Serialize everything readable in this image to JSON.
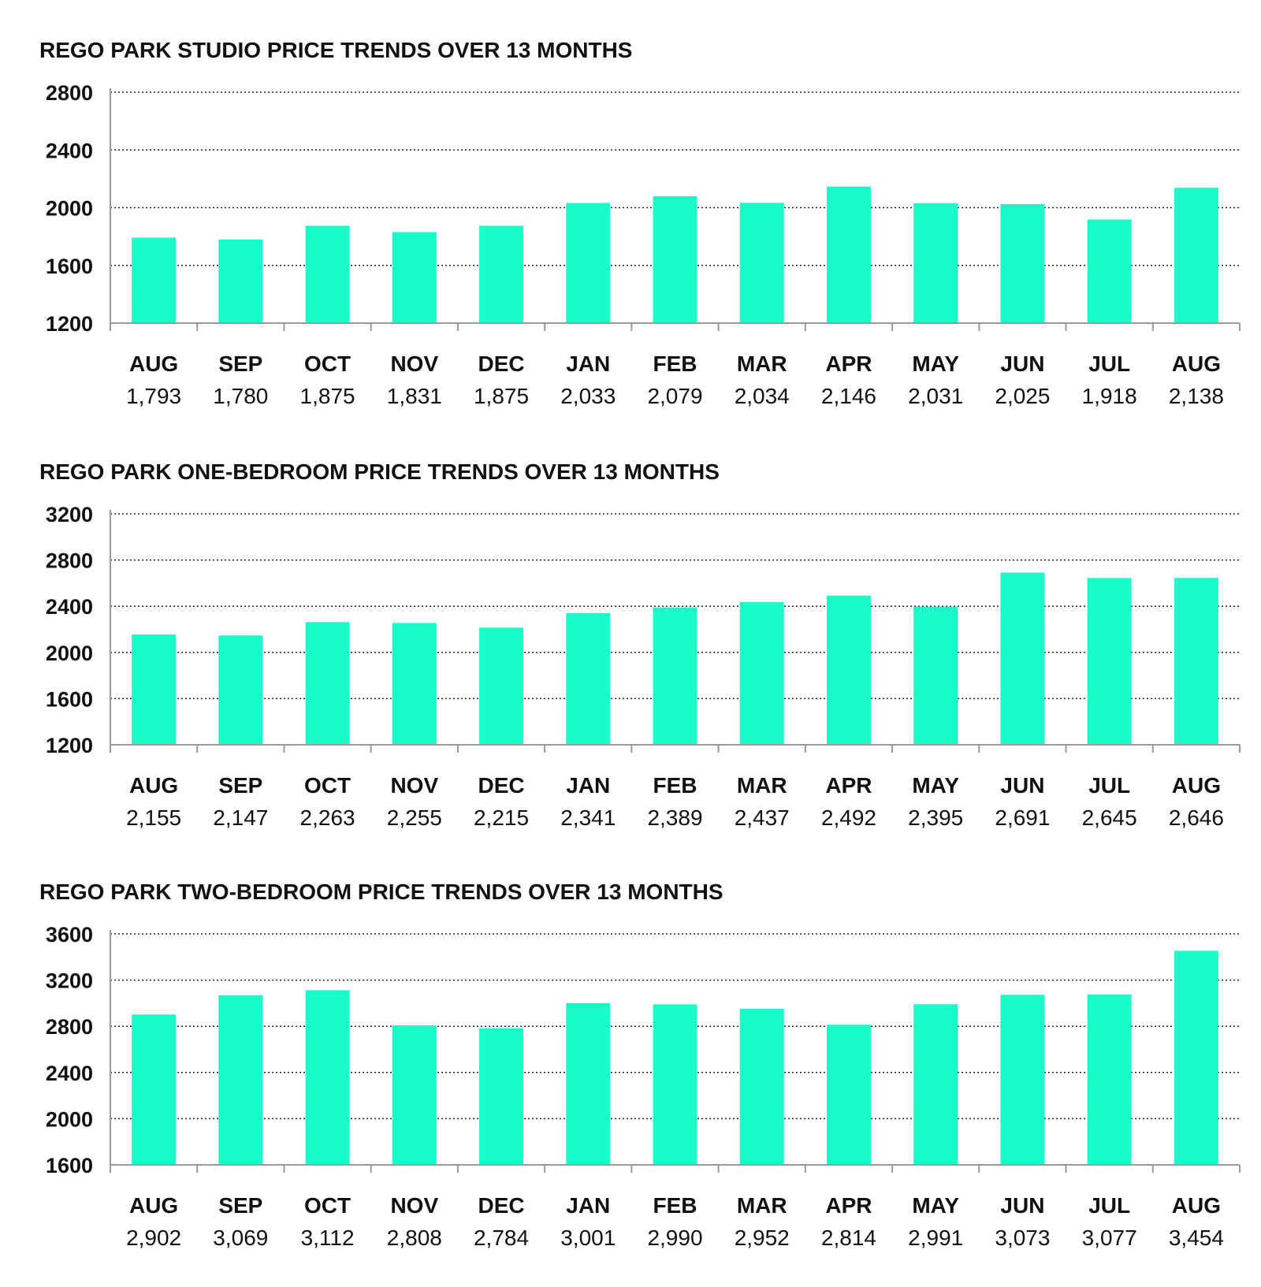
{
  "chart_data": [
    {
      "type": "bar",
      "title": "REGO PARK STUDIO PRICE TRENDS OVER 13 MONTHS",
      "categories": [
        "AUG",
        "SEP",
        "OCT",
        "NOV",
        "DEC",
        "JAN",
        "FEB",
        "MAR",
        "APR",
        "MAY",
        "JUN",
        "JUL",
        "AUG"
      ],
      "values": [
        1793,
        1780,
        1875,
        1831,
        1875,
        2033,
        2079,
        2034,
        2146,
        2031,
        2025,
        1918,
        2138
      ],
      "value_labels": [
        "1,793",
        "1,780",
        "1,875",
        "1,831",
        "1,875",
        "2,033",
        "2,079",
        "2,034",
        "2,146",
        "2,031",
        "2,025",
        "1,918",
        "2,138"
      ],
      "y_ticks": [
        1200,
        1600,
        2000,
        2400,
        2800
      ],
      "ylim": [
        1200,
        2800
      ],
      "grid": true,
      "bar_color": "#1afcc9"
    },
    {
      "type": "bar",
      "title": "REGO PARK ONE-BEDROOM PRICE TRENDS OVER 13 MONTHS",
      "categories": [
        "AUG",
        "SEP",
        "OCT",
        "NOV",
        "DEC",
        "JAN",
        "FEB",
        "MAR",
        "APR",
        "MAY",
        "JUN",
        "JUL",
        "AUG"
      ],
      "values": [
        2155,
        2147,
        2263,
        2255,
        2215,
        2341,
        2389,
        2437,
        2492,
        2395,
        2691,
        2645,
        2646
      ],
      "value_labels": [
        "2,155",
        "2,147",
        "2,263",
        "2,255",
        "2,215",
        "2,341",
        "2,389",
        "2,437",
        "2,492",
        "2,395",
        "2,691",
        "2,645",
        "2,646"
      ],
      "y_ticks": [
        1200,
        1600,
        2000,
        2400,
        2800,
        3200
      ],
      "ylim": [
        1200,
        3200
      ],
      "grid": true,
      "bar_color": "#1afcc9"
    },
    {
      "type": "bar",
      "title": "REGO PARK TWO-BEDROOM PRICE TRENDS OVER 13 MONTHS",
      "categories": [
        "AUG",
        "SEP",
        "OCT",
        "NOV",
        "DEC",
        "JAN",
        "FEB",
        "MAR",
        "APR",
        "MAY",
        "JUN",
        "JUL",
        "AUG"
      ],
      "values": [
        2902,
        3069,
        3112,
        2808,
        2784,
        3001,
        2990,
        2952,
        2814,
        2991,
        3073,
        3077,
        3454
      ],
      "value_labels": [
        "2,902",
        "3,069",
        "3,112",
        "2,808",
        "2,784",
        "3,001",
        "2,990",
        "2,952",
        "2,814",
        "2,991",
        "3,073",
        "3,077",
        "3,454"
      ],
      "y_ticks": [
        1600,
        2000,
        2400,
        2800,
        3200,
        3600
      ],
      "ylim": [
        1600,
        3600
      ],
      "grid": true,
      "bar_color": "#1afcc9"
    }
  ]
}
